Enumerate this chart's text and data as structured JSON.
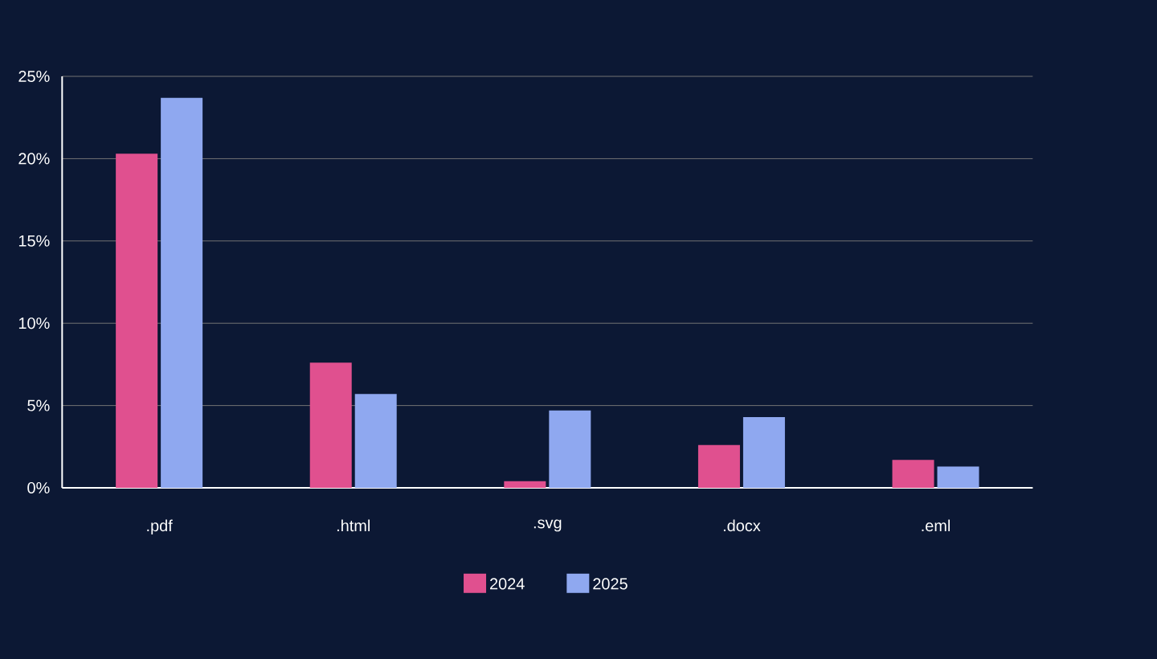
{
  "chart_data": {
    "type": "bar",
    "categories": [
      ".pdf",
      ".html",
      ".svg",
      ".docx",
      ".eml"
    ],
    "series": [
      {
        "name": "2024",
        "color": "#e0508f",
        "values": [
          20.3,
          7.6,
          0.4,
          2.6,
          1.7
        ]
      },
      {
        "name": "2025",
        "color": "#8fa8f0",
        "values": [
          23.7,
          5.7,
          4.7,
          4.3,
          1.3
        ]
      }
    ],
    "ylim": [
      0,
      25
    ],
    "yticks": [
      {
        "value": 0,
        "label": "0%"
      },
      {
        "value": 5,
        "label": "5%"
      },
      {
        "value": 10,
        "label": "10%"
      },
      {
        "value": 15,
        "label": "15%"
      },
      {
        "value": 20,
        "label": "20%"
      },
      {
        "value": 25,
        "label": "25%"
      }
    ],
    "grid": "y",
    "legend": "bottom"
  }
}
